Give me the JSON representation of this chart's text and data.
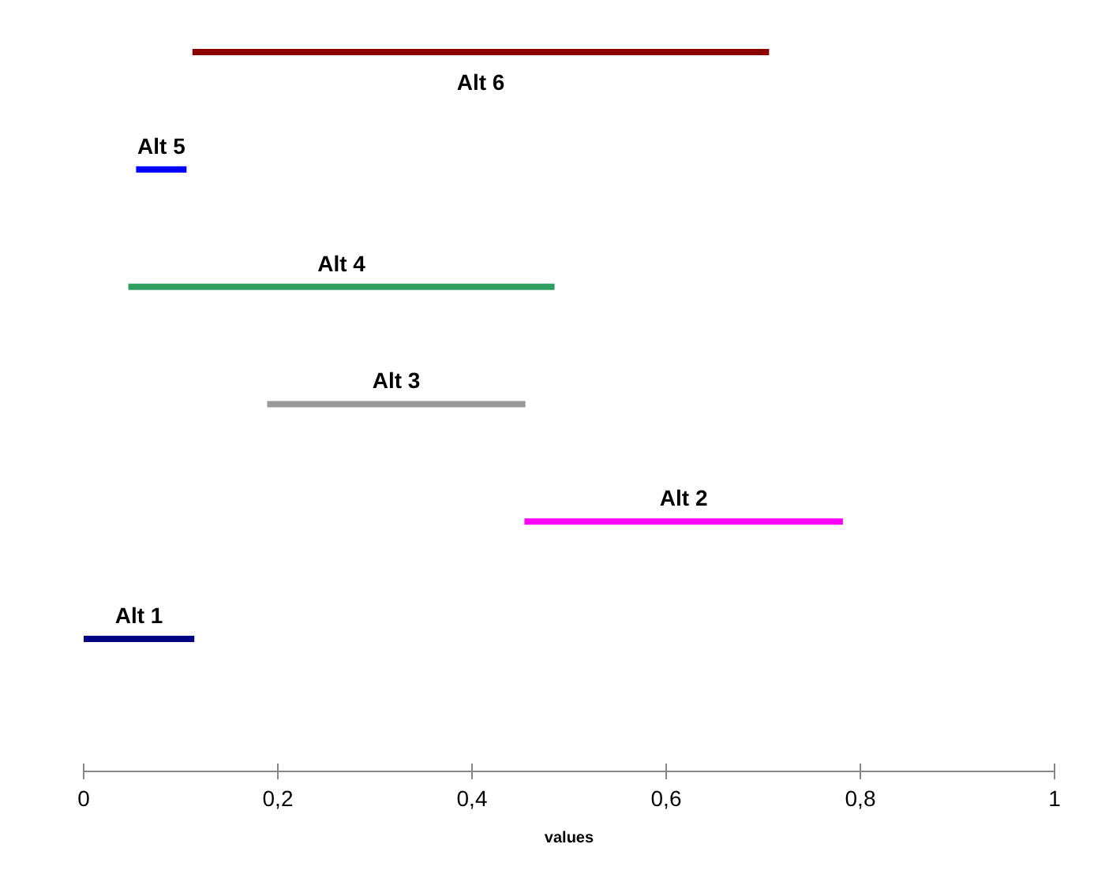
{
  "chart_data": {
    "type": "bar",
    "orientation": "horizontal",
    "xlabel": "values",
    "categories": [
      "Alt 6",
      "Alt 5",
      "Alt 4",
      "Alt 3",
      "Alt 2",
      "Alt 1"
    ],
    "base": [
      0.112,
      0.054,
      0.046,
      0.189,
      0.454,
      0
    ],
    "values": [
      0.594,
      0.052,
      0.439,
      0.266,
      0.328,
      0.114
    ],
    "colors": [
      "#8b0000",
      "#0000ff",
      "#2e9e5e",
      "#999999",
      "#ff00ff",
      "#000080"
    ],
    "xlim": [
      0,
      1
    ],
    "xticks": [
      0,
      {
        "value": 0.2,
        "label": "0,2"
      },
      {
        "value": 0.4,
        "label": "0,4"
      },
      {
        "value": 0.6,
        "label": "0,6"
      },
      {
        "value": 0.8,
        "label": "0,8"
      },
      1
    ],
    "tick_labels": "x",
    "grid": false
  }
}
